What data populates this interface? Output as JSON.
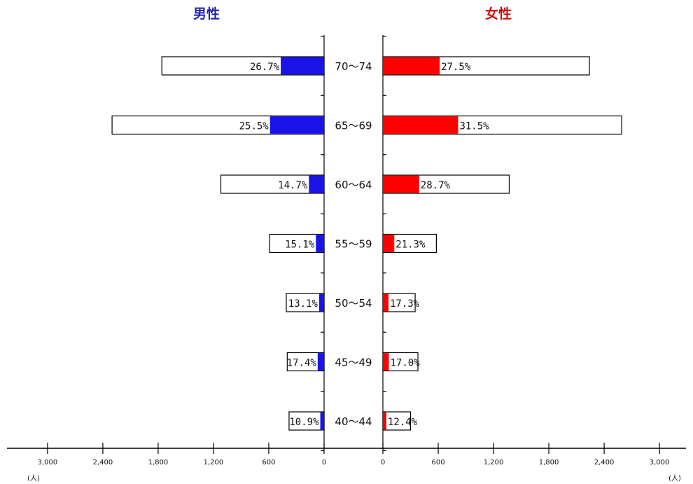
{
  "chart_data": {
    "type": "bar",
    "left_title": "男性",
    "right_title": "女性",
    "categories": [
      "70～74",
      "65～69",
      "60～64",
      "55～59",
      "50～54",
      "45～49",
      "40～44"
    ],
    "series": [
      {
        "name": "男性",
        "totals": [
          1760,
          2300,
          1120,
          590,
          410,
          400,
          380
        ],
        "percent_labels": [
          "26.7%",
          "25.5%",
          "14.7%",
          "15.1%",
          "13.1%",
          "17.4%",
          "10.9%"
        ],
        "percent_values": [
          26.7,
          25.5,
          14.7,
          15.1,
          13.1,
          17.4,
          10.9
        ],
        "bar_color": "#1a12e6"
      },
      {
        "name": "女性",
        "totals": [
          2240,
          2590,
          1370,
          580,
          350,
          380,
          300
        ],
        "percent_labels": [
          "27.5%",
          "31.5%",
          "28.7%",
          "21.3%",
          "17.3%",
          "17.0%",
          "12.4%"
        ],
        "percent_values": [
          27.5,
          31.5,
          28.7,
          21.3,
          17.3,
          17.0,
          12.4
        ],
        "bar_color": "#ff0000"
      }
    ],
    "x_ticks_left": [
      "3,000",
      "2,400",
      "1,800",
      "1,200",
      "600",
      "0"
    ],
    "x_ticks_right": [
      "0",
      "600",
      "1,200",
      "1,800",
      "2,400",
      "3,000"
    ],
    "x_tick_values": [
      3000,
      2400,
      1800,
      1200,
      600,
      0
    ],
    "x_unit": "(人)",
    "xlim": [
      0,
      3000
    ]
  }
}
